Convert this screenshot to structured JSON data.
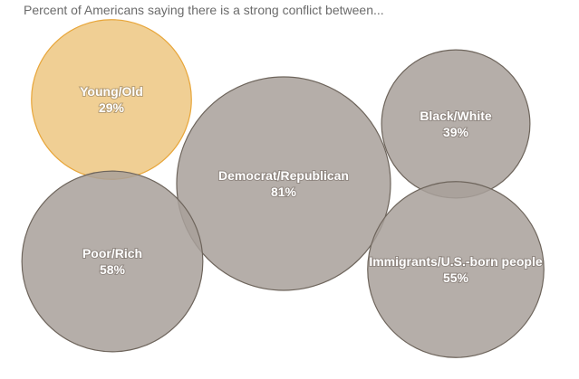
{
  "chart_data": {
    "type": "bubble",
    "title": "Percent of Americans saying there is a strong conflict between...",
    "unit": "%",
    "colors": {
      "highlight_fill": "#f0cf94",
      "highlight_stroke": "#e8a63a",
      "fill": "#a8a09a",
      "stroke": "#6e655c"
    },
    "items": [
      {
        "label": "Young/Old",
        "value": 29,
        "value_label": "29%",
        "highlight": true
      },
      {
        "label": "Democrat/Republican",
        "value": 81,
        "value_label": "81%",
        "highlight": false
      },
      {
        "label": "Black/White",
        "value": 39,
        "value_label": "39%",
        "highlight": false
      },
      {
        "label": "Poor/Rich",
        "value": 58,
        "value_label": "58%",
        "highlight": false
      },
      {
        "label": "Immigrants/U.S.-born people",
        "value": 55,
        "value_label": "55%",
        "highlight": false
      }
    ]
  }
}
